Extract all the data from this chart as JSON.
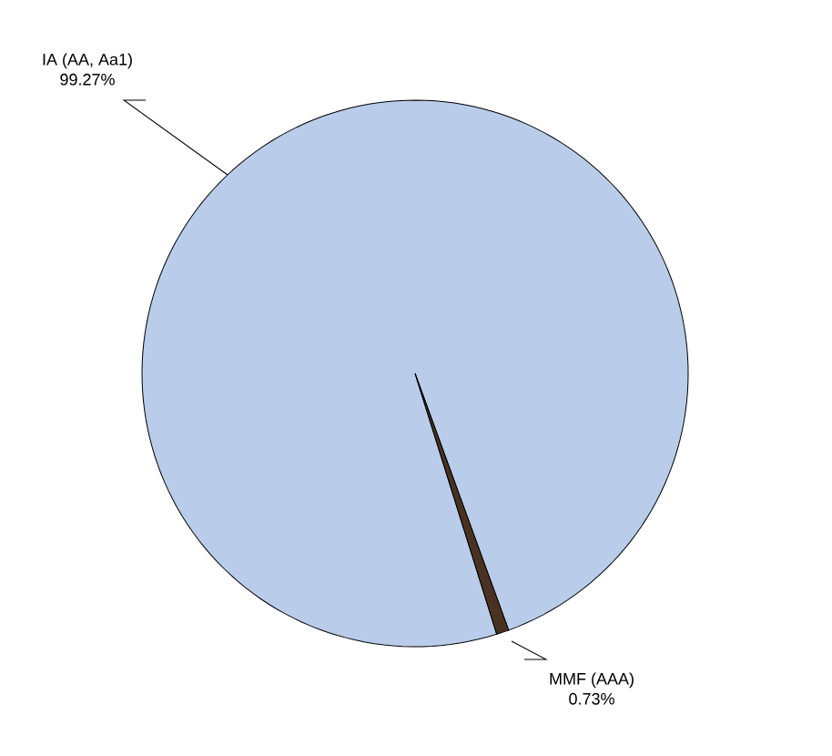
{
  "chart_data": {
    "type": "pie",
    "categories": [
      "IA (AA, Aa1)",
      "MMF (AAA)"
    ],
    "values": [
      99.27,
      0.73
    ],
    "colors": [
      "#b9cdea",
      "#4a3222"
    ],
    "value_labels": [
      "99.27%",
      "0.73%"
    ]
  }
}
